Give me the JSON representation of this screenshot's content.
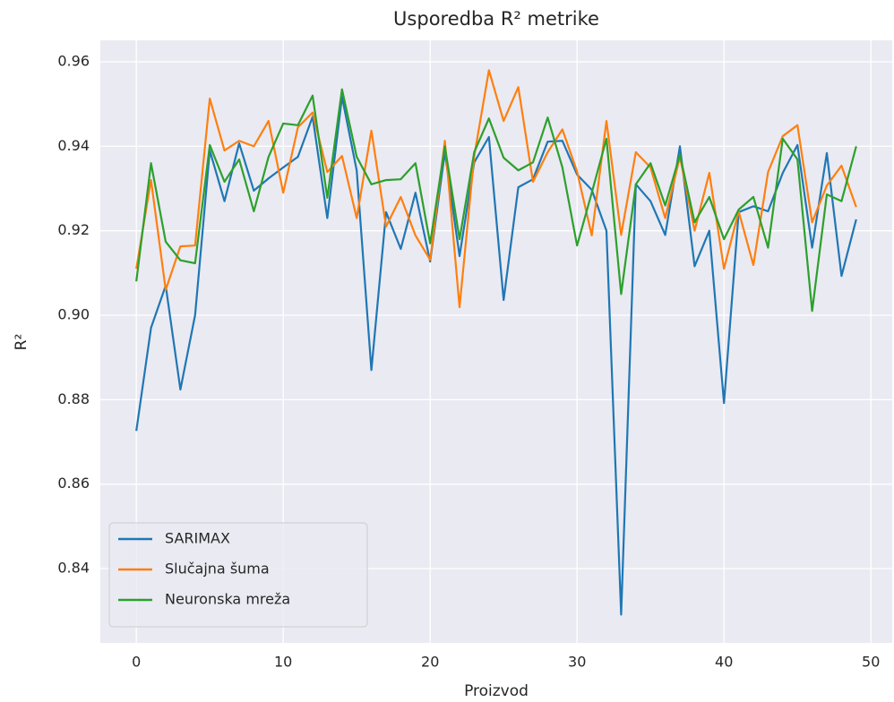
{
  "chart_data": {
    "type": "line",
    "title": "Usporedba R² metrike",
    "x_label": "Proizvod",
    "y_label": "R²",
    "x": [
      0,
      1,
      2,
      3,
      4,
      5,
      6,
      7,
      8,
      9,
      10,
      11,
      12,
      13,
      14,
      15,
      16,
      17,
      18,
      19,
      20,
      21,
      22,
      23,
      24,
      25,
      26,
      27,
      28,
      29,
      30,
      31,
      32,
      33,
      34,
      35,
      36,
      37,
      38,
      39,
      40,
      41,
      42,
      43,
      44,
      45,
      46,
      47,
      48,
      49
    ],
    "series": [
      {
        "name": "SARIMAX",
        "color": "#1f77b4",
        "values": [
          0.8726,
          0.897,
          0.907,
          0.8824,
          0.9,
          0.939,
          0.927,
          0.9407,
          0.9295,
          0.9324,
          0.935,
          0.9375,
          0.947,
          0.923,
          0.9517,
          0.9343,
          0.887,
          0.9244,
          0.9157,
          0.929,
          0.9127,
          0.9386,
          0.914,
          0.9362,
          0.9422,
          0.9036,
          0.9303,
          0.9322,
          0.9411,
          0.9413,
          0.9333,
          0.9297,
          0.92,
          0.8291,
          0.931,
          0.927,
          0.919,
          0.94,
          0.9116,
          0.92,
          0.8792,
          0.9244,
          0.9258,
          0.9246,
          0.9337,
          0.9403,
          0.916,
          0.9384,
          0.9093,
          0.9227
        ]
      },
      {
        "name": "Slučajna šuma",
        "color": "#ff7f0e",
        "values": [
          0.911,
          0.932,
          0.906,
          0.9163,
          0.9165,
          0.9513,
          0.939,
          0.9413,
          0.94,
          0.946,
          0.929,
          0.9445,
          0.948,
          0.9339,
          0.9377,
          0.923,
          0.9437,
          0.921,
          0.928,
          0.9189,
          0.9131,
          0.9413,
          0.9019,
          0.9377,
          0.958,
          0.946,
          0.954,
          0.9316,
          0.9386,
          0.944,
          0.934,
          0.9189,
          0.946,
          0.919,
          0.9386,
          0.935,
          0.923,
          0.9375,
          0.92,
          0.9337,
          0.911,
          0.9246,
          0.9119,
          0.9339,
          0.9424,
          0.945,
          0.922,
          0.9307,
          0.9354,
          0.9256
        ]
      },
      {
        "name": "Neuronska mreža",
        "color": "#2ca02c",
        "values": [
          0.908,
          0.936,
          0.9174,
          0.913,
          0.9123,
          0.9403,
          0.9316,
          0.9369,
          0.9246,
          0.9375,
          0.9454,
          0.945,
          0.952,
          0.9278,
          0.9535,
          0.9375,
          0.931,
          0.932,
          0.9322,
          0.936,
          0.917,
          0.94,
          0.918,
          0.9386,
          0.9466,
          0.9373,
          0.9343,
          0.9362,
          0.9468,
          0.935,
          0.9165,
          0.929,
          0.9418,
          0.905,
          0.931,
          0.936,
          0.926,
          0.938,
          0.922,
          0.928,
          0.918,
          0.925,
          0.928,
          0.916,
          0.9418,
          0.9369,
          0.901,
          0.9286,
          0.927,
          0.94
        ]
      }
    ],
    "xlim": [
      -2.45,
      51.45
    ],
    "xticks": [
      0,
      10,
      20,
      30,
      40,
      50
    ],
    "ylim": [
      0.8224,
      0.9651
    ],
    "yticks": [
      {
        "value": 0.84,
        "label": "0.84"
      },
      {
        "value": 0.86,
        "label": "0.86"
      },
      {
        "value": 0.88,
        "label": "0.88"
      },
      {
        "value": 0.9,
        "label": "0.90"
      },
      {
        "value": 0.92,
        "label": "0.92"
      },
      {
        "value": 0.94,
        "label": "0.94"
      },
      {
        "value": 0.96,
        "label": "0.96"
      }
    ],
    "grid": true,
    "legend": "lower left"
  }
}
